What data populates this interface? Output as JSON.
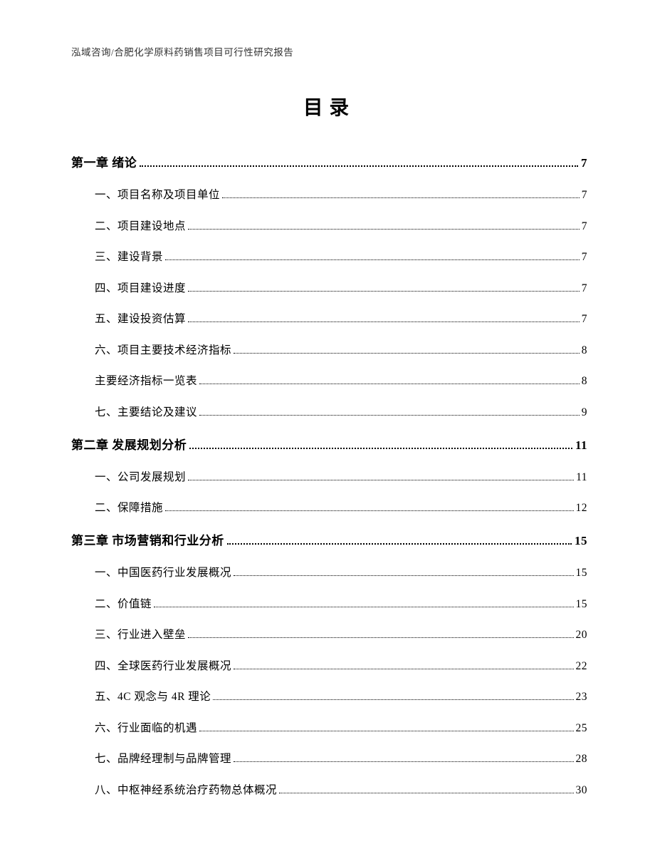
{
  "header": "泓域咨询/合肥化学原料药销售项目可行性研究报告",
  "title": "目录",
  "toc": {
    "c1": {
      "label": "第一章 绪论",
      "page": "7",
      "items": [
        {
          "label": "一、项目名称及项目单位",
          "page": "7"
        },
        {
          "label": "二、项目建设地点",
          "page": "7"
        },
        {
          "label": "三、建设背景",
          "page": "7"
        },
        {
          "label": "四、项目建设进度",
          "page": "7"
        },
        {
          "label": "五、建设投资估算",
          "page": "7"
        },
        {
          "label": "六、项目主要技术经济指标",
          "page": "8"
        },
        {
          "label": "主要经济指标一览表",
          "page": "8"
        },
        {
          "label": "七、主要结论及建议",
          "page": "9"
        }
      ]
    },
    "c2": {
      "label": "第二章 发展规划分析",
      "page": "11",
      "items": [
        {
          "label": "一、公司发展规划",
          "page": "11"
        },
        {
          "label": "二、保障措施",
          "page": "12"
        }
      ]
    },
    "c3": {
      "label": "第三章 市场营销和行业分析",
      "page": "15",
      "items": [
        {
          "label": "一、中国医药行业发展概况",
          "page": "15"
        },
        {
          "label": "二、价值链",
          "page": "15"
        },
        {
          "label": "三、行业进入壁垒",
          "page": "20"
        },
        {
          "label": "四、全球医药行业发展概况",
          "page": "22"
        },
        {
          "label": "五、4C 观念与 4R 理论",
          "page": "23"
        },
        {
          "label": "六、行业面临的机遇",
          "page": "25"
        },
        {
          "label": "七、品牌经理制与品牌管理",
          "page": "28"
        },
        {
          "label": "八、中枢神经系统治疗药物总体概况",
          "page": "30"
        }
      ]
    }
  }
}
